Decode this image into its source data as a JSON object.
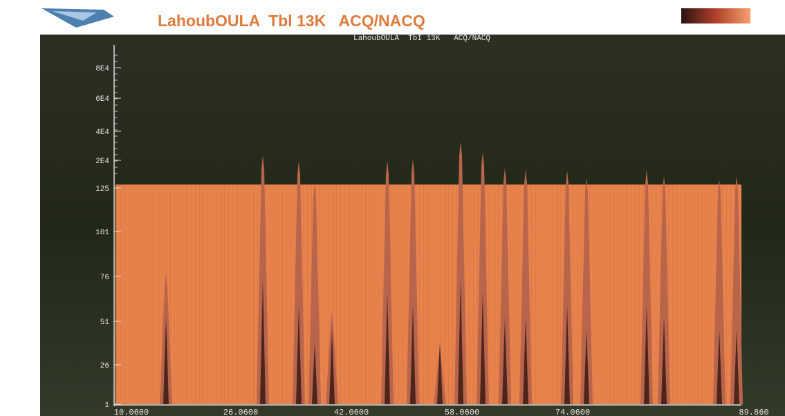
{
  "header": {
    "title": "LahoubOULA  Tbl 13K   ACQ/NACQ"
  },
  "plot": {
    "title": "LahoubOULA  TbI 13K   ACQ/NACQ",
    "y_labels": [
      "8E4",
      "6E4",
      "4E4",
      "2E4",
      "125",
      "101",
      "76",
      "51",
      "26",
      "1"
    ],
    "x_labels": [
      "10.0600",
      "26.0600",
      "42.0600",
      "58.0600",
      "74.0600",
      "89.860"
    ]
  }
}
